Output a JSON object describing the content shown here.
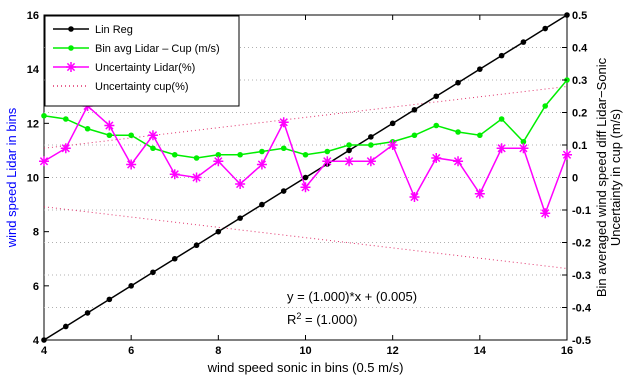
{
  "chart_data": {
    "type": "line",
    "xlabel": "wind speed sonic in bins (0.5 m/s)",
    "ylabel_left": "wind speed Lidar in bins",
    "ylabel_right_line1": "Bin averaged wind speed diff Lidar−Sonic",
    "ylabel_right_line2": "Uncertainty in cup (m/s)",
    "xlim": [
      4,
      16
    ],
    "ylim_left": [
      4,
      16
    ],
    "ylim_right": [
      -0.5,
      0.5
    ],
    "x_ticks": [
      "4",
      "6",
      "8",
      "10",
      "12",
      "14",
      "16"
    ],
    "y_left_ticks": [
      "4",
      "6",
      "8",
      "10",
      "12",
      "14",
      "16"
    ],
    "y_right_ticks": [
      "-0.5",
      "-0.4",
      "-0.3",
      "-0.2",
      "-0.1",
      "0",
      "0.1",
      "0.2",
      "0.3",
      "0.4",
      "0.5"
    ],
    "grid": "dotted horizontal",
    "legend_position": "top-left",
    "colors": {
      "lin_reg": "#000000",
      "bin_avg": "#00ee00",
      "uncert_lidar": "#ff00ff",
      "uncert_cup": "#e0306a",
      "left_axis_label": "#0000ff"
    },
    "series": [
      {
        "name": "Lin Reg",
        "axis": "left",
        "marker": "dot",
        "x": [
          4,
          4.5,
          5,
          5.5,
          6,
          6.5,
          7,
          7.5,
          8,
          8.5,
          9,
          9.5,
          10,
          10.5,
          11,
          11.5,
          12,
          12.5,
          13,
          13.5,
          14,
          14.5,
          15,
          15.5,
          16
        ],
        "y": [
          4,
          4.5,
          5,
          5.5,
          6,
          6.5,
          7,
          7.5,
          8,
          8.5,
          9,
          9.5,
          10,
          10.5,
          11,
          11.5,
          12,
          12.5,
          13,
          13.5,
          14,
          14.5,
          15,
          15.5,
          16
        ]
      },
      {
        "name": "Bin avg Lidar – Cup (m/s)",
        "axis": "right",
        "marker": "dot",
        "x": [
          4,
          4.5,
          5,
          5.5,
          6,
          6.5,
          7,
          7.5,
          8,
          8.5,
          9,
          9.5,
          10,
          10.5,
          11,
          11.5,
          12,
          12.5,
          13,
          13.5,
          14,
          14.5,
          15,
          15.5,
          16
        ],
        "y": [
          0.19,
          0.18,
          0.15,
          0.13,
          0.13,
          0.09,
          0.07,
          0.06,
          0.07,
          0.07,
          0.08,
          0.09,
          0.07,
          0.08,
          0.1,
          0.1,
          0.11,
          0.13,
          0.16,
          0.14,
          0.13,
          0.18,
          0.11,
          0.22,
          0.3
        ]
      },
      {
        "name": "Uncertainty Lidar(%)",
        "axis": "right",
        "marker": "asterisk",
        "x": [
          4,
          4.5,
          5,
          5.5,
          6,
          6.5,
          7,
          7.5,
          8,
          8.5,
          9,
          9.5,
          10,
          10.5,
          11,
          11.5,
          12,
          12.5,
          13,
          13.5,
          14,
          14.5,
          15,
          15.5,
          16
        ],
        "y": [
          0.05,
          0.09,
          0.22,
          0.16,
          0.04,
          0.13,
          0.01,
          0.0,
          0.05,
          -0.02,
          0.04,
          0.17,
          -0.03,
          0.05,
          0.05,
          0.05,
          0.1,
          -0.06,
          0.06,
          0.05,
          -0.05,
          0.09,
          0.09,
          -0.11,
          0.07
        ]
      },
      {
        "name": "Uncertainty cup(%)",
        "axis": "right",
        "marker": "none",
        "style": "dotted",
        "x": [
          4,
          16
        ],
        "y_upper": [
          0.09,
          0.28
        ],
        "y_lower": [
          -0.09,
          -0.28
        ]
      }
    ],
    "annotations": [
      {
        "text": "y = (1.000)*x + (0.005)"
      },
      {
        "text_r": "R",
        "text_sup": "2",
        "text_rest": " = (1.000)"
      }
    ]
  }
}
